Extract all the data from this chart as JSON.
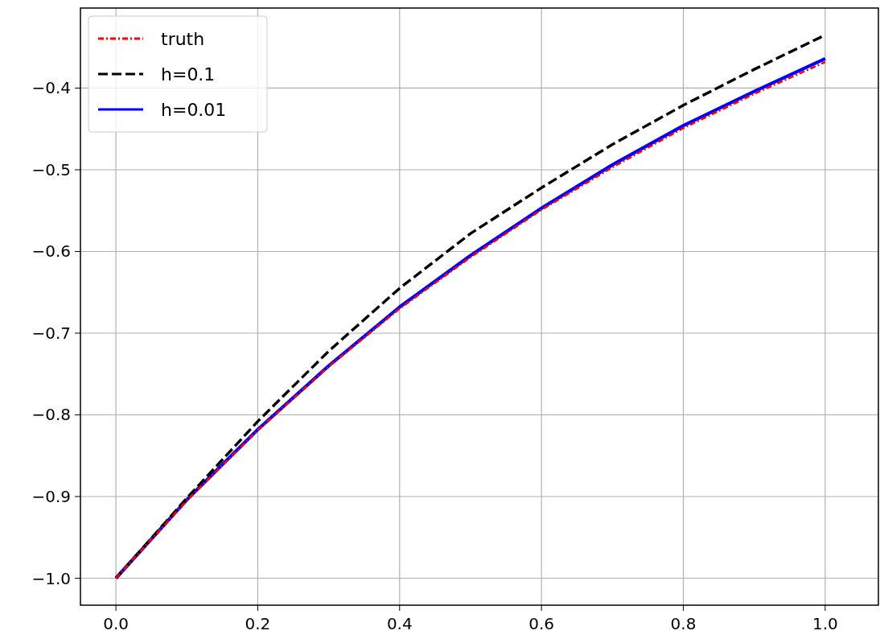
{
  "chart_data": {
    "type": "line",
    "x": [
      0,
      0.1,
      0.2,
      0.3,
      0.4,
      0.5,
      0.6,
      0.7,
      0.8,
      0.9,
      1.0
    ],
    "series": [
      {
        "name": "truth",
        "color": "#ff0000",
        "line_style": "dashdot",
        "values": [
          -1,
          -0.905,
          -0.819,
          -0.741,
          -0.67,
          -0.607,
          -0.549,
          -0.497,
          -0.449,
          -0.407,
          -0.368
        ]
      },
      {
        "name": "h=0.1",
        "color": "#000000",
        "line_style": "dashed",
        "values": [
          -1,
          -0.902,
          -0.808,
          -0.722,
          -0.645,
          -0.578,
          -0.522,
          -0.469,
          -0.421,
          -0.377,
          -0.335
        ]
      },
      {
        "name": "h=0.01",
        "color": "#0000ff",
        "line_style": "solid",
        "values": [
          -1,
          -0.904,
          -0.818,
          -0.74,
          -0.668,
          -0.605,
          -0.547,
          -0.494,
          -0.446,
          -0.404,
          -0.364
        ]
      }
    ],
    "xlim": [
      -0.05,
      1.075
    ],
    "ylim": [
      -1.033,
      -0.302
    ],
    "xticks": [
      {
        "value": 0,
        "label": "0.0"
      },
      {
        "value": 0.2,
        "label": "0.2"
      },
      {
        "value": 0.4,
        "label": "0.4"
      },
      {
        "value": 0.6,
        "label": "0.6"
      },
      {
        "value": 0.8,
        "label": "0.8"
      },
      {
        "value": 1.0,
        "label": "1.0"
      }
    ],
    "yticks": [
      {
        "value": -1.0,
        "label": "−1.0"
      },
      {
        "value": -0.9,
        "label": "−0.9"
      },
      {
        "value": -0.8,
        "label": "−0.8"
      },
      {
        "value": -0.7,
        "label": "−0.7"
      },
      {
        "value": -0.6,
        "label": "−0.6"
      },
      {
        "value": -0.5,
        "label": "−0.5"
      },
      {
        "value": -0.4,
        "label": "−0.4"
      }
    ],
    "grid": true,
    "legend": "top left",
    "marker": "none"
  }
}
